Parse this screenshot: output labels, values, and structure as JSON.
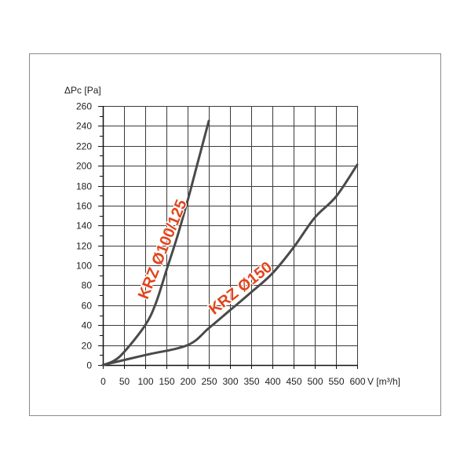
{
  "chart_data": {
    "type": "line",
    "title": "",
    "xlabel": "V [m³/h]",
    "ylabel": "ΔPc [Pa]",
    "xlim": [
      0,
      600
    ],
    "ylim": [
      0,
      260
    ],
    "xticks": [
      0,
      50,
      100,
      150,
      200,
      250,
      300,
      350,
      400,
      450,
      500,
      550,
      600
    ],
    "yticks": [
      0,
      20,
      40,
      60,
      80,
      100,
      120,
      140,
      160,
      180,
      200,
      220,
      240,
      260
    ],
    "grid": true,
    "series": [
      {
        "name": "KRZ Ø100/125",
        "x": [
          0,
          25,
          50,
          100,
          125,
          150,
          175,
          200,
          225,
          250
        ],
        "y": [
          0,
          4,
          13,
          40,
          62,
          95,
          128,
          165,
          205,
          245
        ]
      },
      {
        "name": "KRZ Ø150",
        "x": [
          0,
          100,
          200,
          250,
          300,
          350,
          400,
          450,
          500,
          550,
          600
        ],
        "y": [
          0,
          10,
          20,
          37,
          55,
          73,
          92,
          118,
          148,
          169,
          201
        ]
      }
    ]
  },
  "colors": {
    "curve": "#4a4a4a",
    "series_label": "#e2441c",
    "grid": "#3a3a3a",
    "axis": "#111111",
    "frame": "#8a8a8a"
  }
}
